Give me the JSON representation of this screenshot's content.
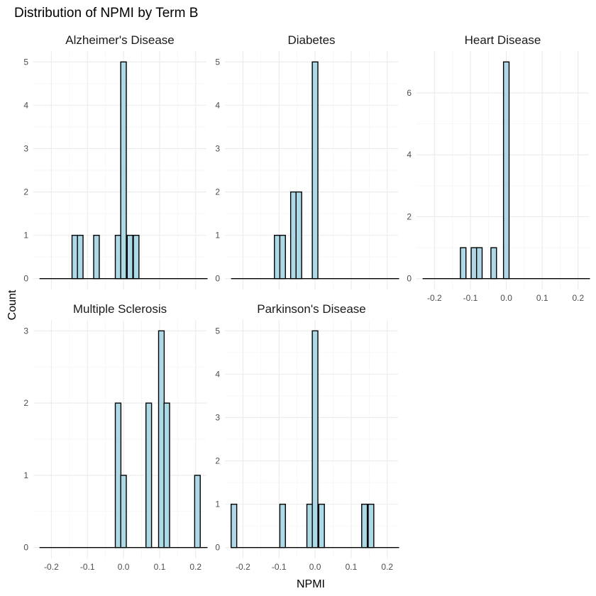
{
  "chart_data": {
    "type": "bar",
    "title": "Distribution of NPMI by Term B",
    "xlabel": "NPMI",
    "ylabel": "Count",
    "xlim": [
      -0.25,
      0.23
    ],
    "x_ticks": [
      -0.2,
      -0.1,
      0.0,
      0.1,
      0.2
    ],
    "x_tick_labels": [
      "-0.2",
      "-0.1",
      "0.0",
      "0.1",
      "0.2"
    ],
    "fill_color": "#add8e6",
    "outline_color": "#000000",
    "grid": true,
    "legend": "none",
    "facets": [
      {
        "name": "Alzheimer's Disease",
        "ylim": [
          0,
          5
        ],
        "y_ticks": [
          0,
          1,
          2,
          3,
          4,
          5
        ],
        "bars": [
          {
            "x": -0.135,
            "y": 1
          },
          {
            "x": -0.12,
            "y": 1
          },
          {
            "x": -0.075,
            "y": 1
          },
          {
            "x": -0.015,
            "y": 1
          },
          {
            "x": 0.0,
            "y": 5
          },
          {
            "x": 0.018,
            "y": 1
          },
          {
            "x": 0.035,
            "y": 1
          }
        ]
      },
      {
        "name": "Diabetes",
        "ylim": [
          0,
          5
        ],
        "y_ticks": [
          0,
          1,
          2,
          3,
          4,
          5
        ],
        "bars": [
          {
            "x": -0.105,
            "y": 1
          },
          {
            "x": -0.09,
            "y": 1
          },
          {
            "x": -0.06,
            "y": 2
          },
          {
            "x": -0.045,
            "y": 2
          },
          {
            "x": 0.0,
            "y": 5
          }
        ]
      },
      {
        "name": "Heart Disease",
        "ylim": [
          0,
          7
        ],
        "y_ticks": [
          0,
          2,
          4,
          6
        ],
        "bars": [
          {
            "x": -0.12,
            "y": 1
          },
          {
            "x": -0.09,
            "y": 1
          },
          {
            "x": -0.075,
            "y": 1
          },
          {
            "x": -0.035,
            "y": 1
          },
          {
            "x": 0.0,
            "y": 7
          }
        ]
      },
      {
        "name": "Multiple Sclerosis",
        "ylim": [
          0,
          3
        ],
        "y_ticks": [
          0,
          1,
          2,
          3
        ],
        "bars": [
          {
            "x": -0.015,
            "y": 2
          },
          {
            "x": 0.0,
            "y": 1
          },
          {
            "x": 0.07,
            "y": 2
          },
          {
            "x": 0.105,
            "y": 3
          },
          {
            "x": 0.12,
            "y": 2
          },
          {
            "x": 0.205,
            "y": 1
          }
        ]
      },
      {
        "name": "Parkinson's Disease",
        "ylim": [
          0,
          5
        ],
        "y_ticks": [
          0,
          1,
          2,
          3,
          4,
          5
        ],
        "bars": [
          {
            "x": -0.225,
            "y": 1
          },
          {
            "x": -0.09,
            "y": 1
          },
          {
            "x": -0.015,
            "y": 1
          },
          {
            "x": 0.0,
            "y": 5
          },
          {
            "x": 0.018,
            "y": 1
          },
          {
            "x": 0.137,
            "y": 1
          },
          {
            "x": 0.155,
            "y": 1
          }
        ]
      }
    ]
  }
}
